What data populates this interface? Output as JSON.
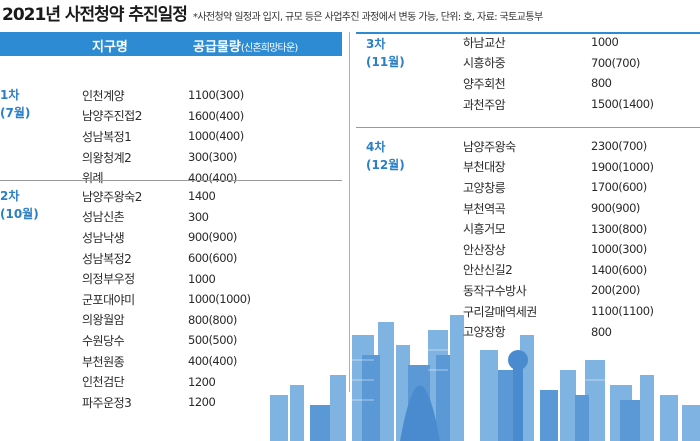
{
  "header": {
    "title": "2021년 사전청약 추진일정",
    "note": "*사전청약 일정과 입지, 규모 등은 사업추진 과정에서 변동 가능, 단위: 호, 자료: 국토교통부"
  },
  "table_header": {
    "site_label": "지구명",
    "supply_label": "공급물량",
    "supply_sub": "(신혼희망타운)"
  },
  "colors": {
    "accent": "#2c8bd2",
    "phase_text": "#2a7fc6",
    "skyline": "#6ea8de"
  },
  "left_groups": [
    {
      "phase": "1차",
      "month": "(7월)",
      "rows": [
        {
          "site": "인천계양",
          "value": "1100(300)"
        },
        {
          "site": "남양주진접2",
          "value": "1600(400)"
        },
        {
          "site": "성남복정1",
          "value": "1000(400)"
        },
        {
          "site": "의왕청계2",
          "value": "300(300)"
        },
        {
          "site": "위례",
          "value": "400(400)"
        }
      ]
    },
    {
      "phase": "2차",
      "month": "(10월)",
      "rows": [
        {
          "site": "남양주왕숙2",
          "value": "1400"
        },
        {
          "site": "성남신촌",
          "value": "300"
        },
        {
          "site": "성남낙생",
          "value": "900(900)"
        },
        {
          "site": "성남복정2",
          "value": "600(600)"
        },
        {
          "site": "의정부우정",
          "value": "1000"
        },
        {
          "site": "군포대야미",
          "value": "1000(1000)"
        },
        {
          "site": "의왕월암",
          "value": "800(800)"
        },
        {
          "site": "수원당수",
          "value": "500(500)"
        },
        {
          "site": "부천원종",
          "value": "400(400)"
        },
        {
          "site": "인천검단",
          "value": "1200"
        },
        {
          "site": "파주운정3",
          "value": "1200"
        }
      ]
    }
  ],
  "right_groups": [
    {
      "phase": "3차",
      "month": "(11월)",
      "rows": [
        {
          "site": "하남교산",
          "value": "1000"
        },
        {
          "site": "시흥하중",
          "value": "700(700)"
        },
        {
          "site": "양주회천",
          "value": "800"
        },
        {
          "site": "과천주암",
          "value": "1500(1400)"
        }
      ]
    },
    {
      "phase": "4차",
      "month": "(12월)",
      "rows": [
        {
          "site": "남양주왕숙",
          "value": "2300(700)"
        },
        {
          "site": "부천대장",
          "value": "1900(1000)"
        },
        {
          "site": "고양창릉",
          "value": "1700(600)"
        },
        {
          "site": "부천역곡",
          "value": "900(900)"
        },
        {
          "site": "시흥거모",
          "value": "1300(800)"
        },
        {
          "site": "안산장상",
          "value": "1000(300)"
        },
        {
          "site": "안산신길2",
          "value": "1400(600)"
        },
        {
          "site": "동작구수방사",
          "value": "200(200)"
        },
        {
          "site": "구리갈매역세권",
          "value": "1100(1100)"
        },
        {
          "site": "고양장항",
          "value": "800"
        }
      ]
    }
  ]
}
